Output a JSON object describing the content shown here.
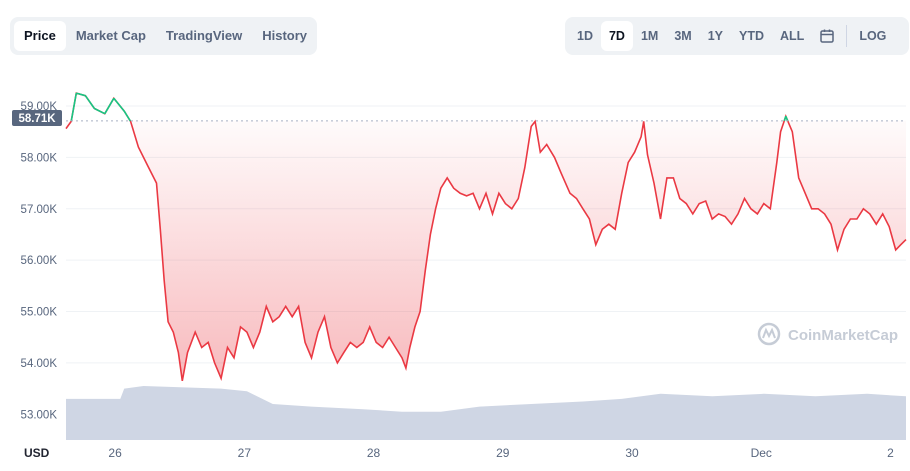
{
  "tabs_left": [
    {
      "label": "Price",
      "active": true
    },
    {
      "label": "Market Cap",
      "active": false
    },
    {
      "label": "TradingView",
      "active": false
    },
    {
      "label": "History",
      "active": false
    }
  ],
  "tabs_right": [
    {
      "label": "1D",
      "active": false
    },
    {
      "label": "7D",
      "active": true
    },
    {
      "label": "1M",
      "active": false
    },
    {
      "label": "3M",
      "active": false
    },
    {
      "label": "1Y",
      "active": false
    },
    {
      "label": "YTD",
      "active": false
    },
    {
      "label": "ALL",
      "active": false
    }
  ],
  "calendar_icon": "calendar-icon",
  "log_label": "LOG",
  "currency_label": "USD",
  "watermark": "CoinMarketCap",
  "colors": {
    "up": "#16c784",
    "down": "#ea3943",
    "volume": "#cfd6e4",
    "text": "#58667e"
  },
  "chart_data": {
    "type": "line",
    "currency": "USD",
    "reference_price": 58710,
    "reference_label": "58.71K",
    "y_ticks": [
      "59.00K",
      "58.00K",
      "57.00K",
      "56.00K",
      "55.00K",
      "54.00K",
      "53.00K"
    ],
    "y_tick_values": [
      59000,
      58000,
      57000,
      56000,
      55000,
      54000,
      53000
    ],
    "x_tick_labels": [
      "26",
      "27",
      "28",
      "29",
      "30",
      "Dec",
      "2"
    ],
    "ylim": [
      52500,
      59700
    ],
    "grid": true,
    "series": [
      {
        "values": [
          [
            0.0,
            58560
          ],
          [
            0.04,
            58700
          ],
          [
            0.08,
            59250
          ],
          [
            0.15,
            59200
          ],
          [
            0.22,
            58950
          ],
          [
            0.3,
            58850
          ],
          [
            0.37,
            59150
          ],
          [
            0.45,
            58900
          ],
          [
            0.5,
            58700
          ],
          [
            0.56,
            58200
          ],
          [
            0.63,
            57850
          ],
          [
            0.7,
            57500
          ],
          [
            0.73,
            56600
          ],
          [
            0.76,
            55600
          ],
          [
            0.79,
            54800
          ],
          [
            0.83,
            54600
          ],
          [
            0.87,
            54200
          ],
          [
            0.9,
            53650
          ],
          [
            0.94,
            54200
          ],
          [
            1.0,
            54600
          ],
          [
            1.05,
            54300
          ],
          [
            1.1,
            54400
          ],
          [
            1.15,
            54000
          ],
          [
            1.2,
            53700
          ],
          [
            1.25,
            54300
          ],
          [
            1.3,
            54100
          ],
          [
            1.35,
            54700
          ],
          [
            1.4,
            54600
          ],
          [
            1.45,
            54300
          ],
          [
            1.5,
            54600
          ],
          [
            1.55,
            55100
          ],
          [
            1.6,
            54800
          ],
          [
            1.65,
            54900
          ],
          [
            1.7,
            55100
          ],
          [
            1.75,
            54900
          ],
          [
            1.8,
            55100
          ],
          [
            1.85,
            54400
          ],
          [
            1.9,
            54100
          ],
          [
            1.95,
            54600
          ],
          [
            2.0,
            54900
          ],
          [
            2.05,
            54300
          ],
          [
            2.1,
            54000
          ],
          [
            2.15,
            54200
          ],
          [
            2.2,
            54400
          ],
          [
            2.25,
            54300
          ],
          [
            2.3,
            54400
          ],
          [
            2.35,
            54700
          ],
          [
            2.4,
            54400
          ],
          [
            2.45,
            54300
          ],
          [
            2.5,
            54500
          ],
          [
            2.55,
            54300
          ],
          [
            2.6,
            54100
          ],
          [
            2.63,
            53900
          ],
          [
            2.66,
            54300
          ],
          [
            2.7,
            54700
          ],
          [
            2.74,
            55000
          ],
          [
            2.78,
            55800
          ],
          [
            2.82,
            56500
          ],
          [
            2.86,
            57000
          ],
          [
            2.9,
            57400
          ],
          [
            2.95,
            57600
          ],
          [
            3.0,
            57400
          ],
          [
            3.05,
            57300
          ],
          [
            3.1,
            57250
          ],
          [
            3.15,
            57300
          ],
          [
            3.2,
            57000
          ],
          [
            3.25,
            57300
          ],
          [
            3.3,
            56900
          ],
          [
            3.35,
            57300
          ],
          [
            3.4,
            57100
          ],
          [
            3.45,
            57000
          ],
          [
            3.5,
            57200
          ],
          [
            3.55,
            57800
          ],
          [
            3.6,
            58600
          ],
          [
            3.63,
            58700
          ],
          [
            3.67,
            58100
          ],
          [
            3.72,
            58250
          ],
          [
            3.78,
            58000
          ],
          [
            3.83,
            57700
          ],
          [
            3.9,
            57300
          ],
          [
            3.95,
            57200
          ],
          [
            4.0,
            57000
          ],
          [
            4.05,
            56800
          ],
          [
            4.1,
            56300
          ],
          [
            4.15,
            56600
          ],
          [
            4.2,
            56700
          ],
          [
            4.25,
            56600
          ],
          [
            4.3,
            57300
          ],
          [
            4.35,
            57900
          ],
          [
            4.4,
            58100
          ],
          [
            4.45,
            58400
          ],
          [
            4.47,
            58700
          ],
          [
            4.5,
            58050
          ],
          [
            4.55,
            57500
          ],
          [
            4.6,
            56800
          ],
          [
            4.65,
            57600
          ],
          [
            4.7,
            57600
          ],
          [
            4.75,
            57200
          ],
          [
            4.8,
            57100
          ],
          [
            4.85,
            56900
          ],
          [
            4.9,
            57100
          ],
          [
            4.95,
            57150
          ],
          [
            5.0,
            56800
          ],
          [
            5.05,
            56900
          ],
          [
            5.1,
            56850
          ],
          [
            5.15,
            56700
          ],
          [
            5.2,
            56900
          ],
          [
            5.25,
            57200
          ],
          [
            5.3,
            57000
          ],
          [
            5.35,
            56900
          ],
          [
            5.4,
            57100
          ],
          [
            5.45,
            57000
          ],
          [
            5.5,
            57900
          ],
          [
            5.53,
            58500
          ],
          [
            5.57,
            58800
          ],
          [
            5.62,
            58500
          ],
          [
            5.67,
            57600
          ],
          [
            5.72,
            57300
          ],
          [
            5.77,
            57000
          ],
          [
            5.82,
            57000
          ],
          [
            5.87,
            56900
          ],
          [
            5.92,
            56700
          ],
          [
            5.97,
            56200
          ],
          [
            6.02,
            56600
          ],
          [
            6.07,
            56800
          ],
          [
            6.12,
            56800
          ],
          [
            6.17,
            57000
          ],
          [
            6.22,
            56900
          ],
          [
            6.27,
            56700
          ],
          [
            6.32,
            56900
          ],
          [
            6.37,
            56650
          ],
          [
            6.42,
            56200
          ],
          [
            6.46,
            56300
          ],
          [
            6.5,
            56400
          ]
        ]
      }
    ],
    "volume": [
      [
        0.0,
        53300
      ],
      [
        0.35,
        53300
      ],
      [
        0.42,
        53300
      ],
      [
        0.45,
        53500
      ],
      [
        0.6,
        53550
      ],
      [
        1.2,
        53500
      ],
      [
        1.4,
        53450
      ],
      [
        1.6,
        53200
      ],
      [
        1.9,
        53150
      ],
      [
        2.3,
        53100
      ],
      [
        2.6,
        53050
      ],
      [
        2.9,
        53050
      ],
      [
        3.2,
        53150
      ],
      [
        3.6,
        53200
      ],
      [
        4.0,
        53250
      ],
      [
        4.3,
        53300
      ],
      [
        4.6,
        53400
      ],
      [
        5.0,
        53350
      ],
      [
        5.4,
        53400
      ],
      [
        5.8,
        53350
      ],
      [
        6.2,
        53400
      ],
      [
        6.5,
        53350
      ]
    ],
    "x_tick_positions": [
      0.38,
      1.38,
      2.38,
      3.38,
      4.38,
      5.38,
      6.38
    ]
  }
}
